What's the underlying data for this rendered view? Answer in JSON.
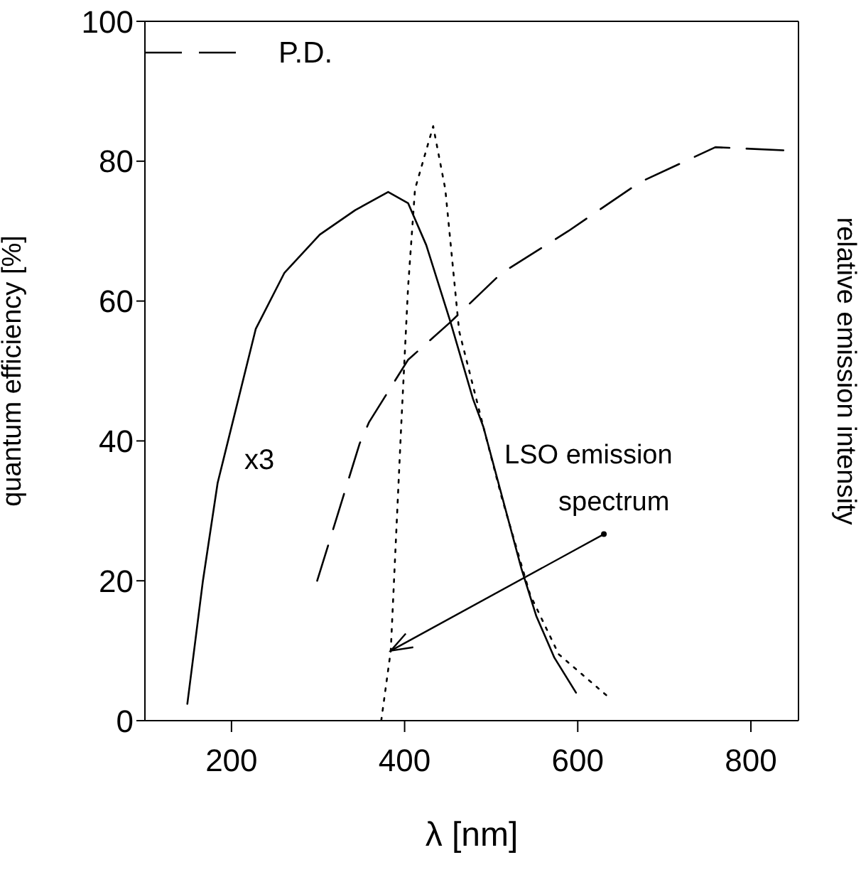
{
  "chart_data": {
    "type": "line",
    "xlabel": "λ [nm]",
    "ylabel": "quantum efficiency [%]",
    "y2label": "relative emission intensity",
    "xlim": [
      100,
      855
    ],
    "xticks": [
      200,
      400,
      600,
      800
    ],
    "ylim": [
      0,
      100
    ],
    "yticks": [
      0,
      20,
      40,
      60,
      80,
      100
    ],
    "legend": "top left",
    "marker": "none",
    "series": [
      {
        "name": "P.D.",
        "color": "#000000",
        "line_style": "dashed",
        "x": [
          299,
          348,
          359,
          404,
          453,
          512,
          589,
          672,
          759,
          848,
          855
        ],
        "values": [
          20,
          39.6,
          42.7,
          51.6,
          57,
          64,
          70,
          77,
          82,
          81.5,
          81.5
        ]
      },
      {
        "color": "#000000",
        "line_style": "solid",
        "x": [
          149,
          167,
          184,
          192,
          228,
          261,
          302,
          343,
          381,
          404,
          425,
          453,
          479,
          491,
          535,
          552,
          573,
          598
        ],
        "values": [
          2.4,
          20,
          34,
          38,
          56,
          64,
          69.5,
          73,
          75.6,
          74,
          68,
          57,
          46,
          42,
          21.7,
          15,
          9,
          4
        ]
      },
      {
        "color": "#000000",
        "line_style": "dotted",
        "x": [
          373,
          384,
          396,
          404,
          412,
          433,
          447,
          463,
          491,
          512,
          545,
          578,
          639
        ],
        "values": [
          0,
          10,
          42,
          62,
          76,
          85,
          76,
          55.7,
          42,
          32,
          18,
          9.5,
          3
        ]
      }
    ],
    "annotations": [
      "x3",
      {
        "text": "LSO emission spectrum",
        "x": 384,
        "y": 10
      }
    ]
  }
}
